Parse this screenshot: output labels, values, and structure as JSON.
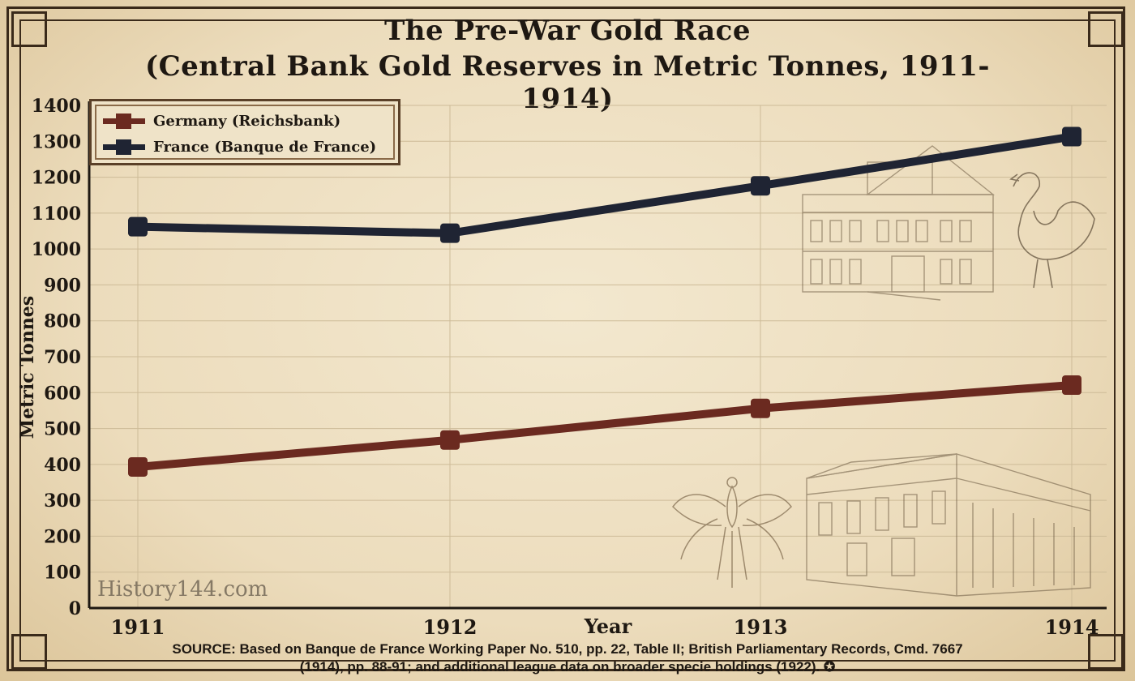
{
  "colors": {
    "germany": "#6b2a20",
    "france": "#1f2433",
    "ink": "#1e1812",
    "grid": "#cdbb98"
  },
  "header": {
    "title_line1": "The Pre-War Gold Race",
    "title_line2": "(Central Bank Gold Reserves in Metric Tonnes, 1911-1914)"
  },
  "footer": {
    "source_line1": "SOURCE: Based on Banque de France Working Paper No. 510, pp. 22, Table II; British Parliamentary Records, Cmd. 7667",
    "source_line2": "(1914), pp. 88-91; and additional league data on broader specie holdings (1922). ✪",
    "watermark": "History144.com"
  },
  "chart_data": {
    "type": "line",
    "title": "The Pre-War Gold Race",
    "subtitle": "(Central Bank Gold Reserves in Metric Tonnes, 1911-1914)",
    "xlabel": "Year",
    "ylabel": "Metric Tonnes",
    "x": [
      "1911",
      "1912",
      "1913",
      "1914"
    ],
    "ylim": [
      0,
      1400
    ],
    "yticks": [
      0,
      100,
      200,
      300,
      400,
      500,
      600,
      700,
      800,
      900,
      1000,
      1100,
      1200,
      1300,
      1400
    ],
    "grid": true,
    "legend_position": "top-left",
    "series": [
      {
        "name": "Germany (Reichsbank)",
        "values": [
          393,
          468,
          556,
          621
        ],
        "color": "#6b2a20"
      },
      {
        "name": "France (Banque de France)",
        "values": [
          1062,
          1044,
          1176,
          1313
        ],
        "color": "#1f2433"
      }
    ]
  }
}
